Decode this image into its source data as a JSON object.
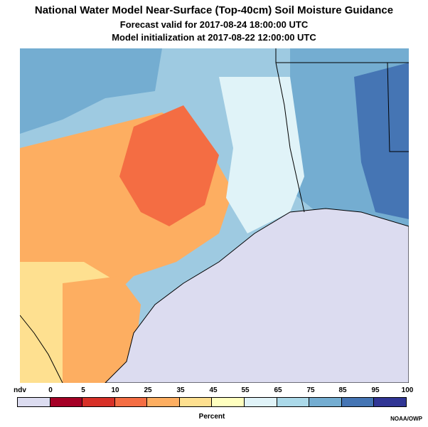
{
  "header": {
    "title": "National Water Model Near-Surface (Top-40cm) Soil Moisture Guidance",
    "forecast_valid": "Forecast valid for 2017-08-24 18:00:00 UTC",
    "initialization": "Model initialization at 2017-08-22 12:00:00 UTC"
  },
  "legend": {
    "labels": [
      "ndv",
      "0",
      "5",
      "10",
      "25",
      "35",
      "45",
      "55",
      "65",
      "75",
      "85",
      "95",
      "100"
    ],
    "colors": [
      "#dcdcf0",
      "#a50026",
      "#d73027",
      "#f46d43",
      "#fdae61",
      "#fee090",
      "#ffffbf",
      "#e0f3f8",
      "#abd9e9",
      "#74add1",
      "#4575b4",
      "#313695"
    ],
    "units": "Percent"
  },
  "credit": "NOAA/OWP"
}
